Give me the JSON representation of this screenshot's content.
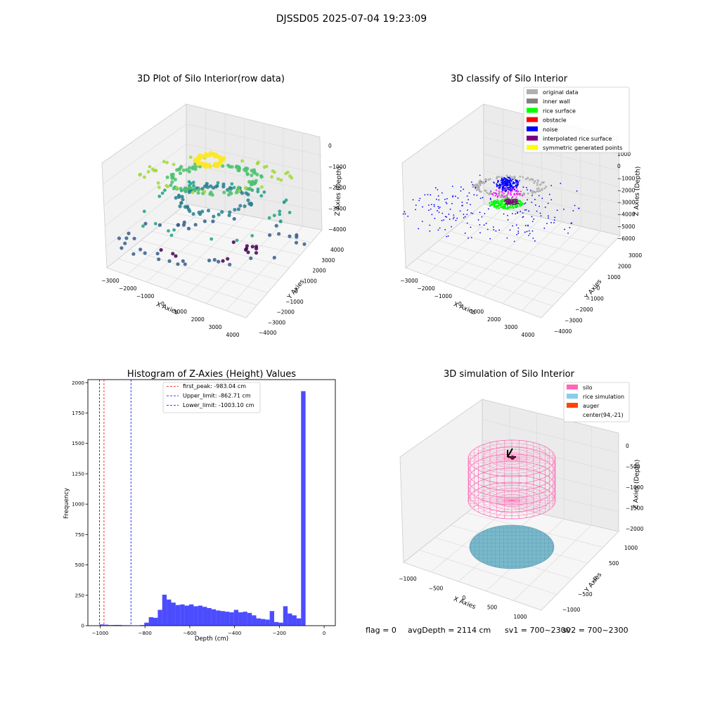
{
  "figure": {
    "suptitle": "DJSSD05 2025-07-04 19:23:09",
    "status_flag": "flag = 0",
    "status_depth": "avgDepth = 2114 cm",
    "status_sv1": "sv1 = 700~2300",
    "status_sv2": "sv2 = 700~2300"
  },
  "chart_data": [
    {
      "type": "scatter",
      "projection": "3d",
      "title": "3D Plot of Silo Interior(row data)",
      "xlabel": "X Axies",
      "ylabel": "Y Axies",
      "zlabel": "Z Axies (Depth)",
      "xticks": [
        "−3000",
        "−2000",
        "−1000",
        "0",
        "1000",
        "2000",
        "3000",
        "4000"
      ],
      "yticks": [
        "4000",
        "3000",
        "2000",
        "1000",
        "0",
        "−1000",
        "−2000",
        "−3000",
        "−4000"
      ],
      "zticks": [
        "0",
        "−1000",
        "−2000",
        "−3000",
        "−4000"
      ],
      "xlim": [
        -3500,
        4200
      ],
      "ylim": [
        -4200,
        4200
      ],
      "zlim": [
        -4500,
        0
      ],
      "colormap": "viridis (colored by depth)",
      "grid": true
    },
    {
      "type": "scatter",
      "projection": "3d",
      "title": "3D classify of Silo Interior",
      "xlabel": "X Axies",
      "ylabel": "Y Axies",
      "zlabel": "Z Axies (Depth)",
      "xticks": [
        "−3000",
        "−2000",
        "−1000",
        "0",
        "1000",
        "2000",
        "3000",
        "4000"
      ],
      "yticks": [
        "3000",
        "2000",
        "1000",
        "0",
        "−1000",
        "−2000",
        "−3000",
        "−4000"
      ],
      "zticks": [
        "1000",
        "0",
        "−1000",
        "−2000",
        "−3000",
        "−4000",
        "−5000",
        "−6000"
      ],
      "legend": [
        {
          "label": "original data",
          "color": "#b0b0b0"
        },
        {
          "label": "inner wall",
          "color": "#808080"
        },
        {
          "label": "rice surface",
          "color": "#00ff00"
        },
        {
          "label": "obstacle",
          "color": "#ff0000"
        },
        {
          "label": "noise",
          "color": "#0000ff"
        },
        {
          "label": "interpolated rice surface",
          "color": "#800080"
        },
        {
          "label": "symmetric generated points",
          "color": "#ffff00"
        }
      ],
      "legend_position": "top-right",
      "grid": true
    },
    {
      "type": "bar",
      "title": "Histogram of Z-Axies (Height) Values",
      "xlabel": "Depth (cm)",
      "ylabel": "Frequency",
      "xlim": [
        -1055,
        50
      ],
      "ylim": [
        0,
        2025
      ],
      "xticks": [
        -1000,
        -800,
        -600,
        -400,
        -200,
        0
      ],
      "xtick_labels": [
        "−1000",
        "−800",
        "−600",
        "−400",
        "−200",
        "0"
      ],
      "yticks": [
        0,
        250,
        500,
        750,
        1000,
        1250,
        1500,
        1750,
        2000
      ],
      "bin_width": 20,
      "bin_left": [
        -1003,
        -983,
        -963,
        -943,
        -923,
        -903,
        -883,
        -863,
        -843,
        -823,
        -803,
        -783,
        -763,
        -743,
        -723,
        -703,
        -683,
        -663,
        -643,
        -623,
        -603,
        -583,
        -563,
        -543,
        -523,
        -503,
        -483,
        -463,
        -443,
        -423,
        -403,
        -383,
        -363,
        -343,
        -323,
        -303,
        -283,
        -263,
        -243,
        -223,
        -203,
        -183,
        -163,
        -143,
        -123,
        -103,
        -83,
        -63,
        -43,
        -23
      ],
      "values": [
        10,
        8,
        5,
        6,
        6,
        4,
        4,
        2,
        2,
        5,
        25,
        70,
        65,
        130,
        255,
        215,
        190,
        170,
        175,
        165,
        175,
        160,
        165,
        155,
        145,
        135,
        125,
        120,
        115,
        110,
        130,
        110,
        115,
        105,
        85,
        60,
        55,
        50,
        120,
        30,
        25,
        160,
        100,
        85,
        60,
        1930,
        0,
        0,
        0,
        0
      ],
      "bar_color": "#0000ff",
      "vlines": [
        {
          "label": "first_peak: -983.04 cm",
          "x": -983.04,
          "color": "#ff0000"
        },
        {
          "label": "Upper_limit: -862.71 cm",
          "x": -862.71,
          "color": "#0000ff"
        },
        {
          "label": "Lower_limit: -1003.10 cm",
          "x": -1003.1,
          "color": "#0000ff"
        }
      ],
      "legend_position": "top-center",
      "grid": false
    },
    {
      "type": "scatter",
      "projection": "3d",
      "title": "3D simulation of Silo Interior",
      "xlabel": "X Axies",
      "ylabel": "Y Axies",
      "zlabel": "Z Axies (Depth)",
      "xticks": [
        "−1000",
        "−500",
        "0",
        "500",
        "1000"
      ],
      "yticks": [
        "1000",
        "500",
        "0",
        "−500",
        "−1000"
      ],
      "zticks": [
        "0",
        "−500",
        "−1000",
        "−1500",
        "−2000"
      ],
      "legend": [
        {
          "label": "silo",
          "color": "#ff69b4"
        },
        {
          "label": "rice simulation",
          "color": "#87ceeb"
        },
        {
          "label": "auger",
          "color": "#ff4500"
        },
        {
          "label": "center(94,-21)",
          "color": "#ffffff"
        }
      ],
      "legend_position": "top-right",
      "grid": true
    }
  ]
}
